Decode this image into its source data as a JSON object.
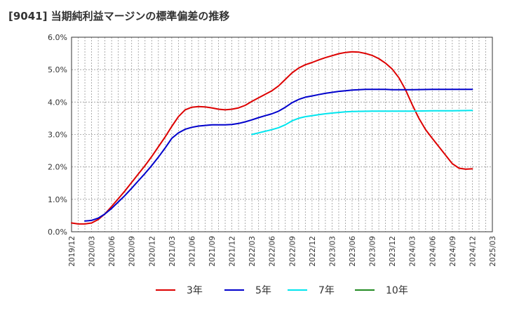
{
  "title": "[9041]  当期純利益マージンの標準偏差の推移",
  "chart_data": {
    "type": "line",
    "title": "[9041]  当期純利益マージンの標準偏差の推移",
    "xlabel": "",
    "ylabel": "",
    "ylim": [
      0,
      6
    ],
    "y_ticks": [
      "0.0%",
      "1.0%",
      "2.0%",
      "3.0%",
      "4.0%",
      "5.0%",
      "6.0%"
    ],
    "x_ticks": [
      "2019/12",
      "2020/03",
      "2020/06",
      "2020/09",
      "2020/12",
      "2021/03",
      "2021/06",
      "2021/09",
      "2021/12",
      "2022/03",
      "2022/06",
      "2022/09",
      "2022/12",
      "2023/03",
      "2023/06",
      "2023/09",
      "2023/12",
      "2024/03",
      "2024/06",
      "2024/09",
      "2024/12",
      "2025/03"
    ],
    "grid": true,
    "legend_position": "bottom",
    "series": [
      {
        "name": "3年",
        "color": "#dd0000",
        "points": [
          [
            "2019/12",
            0.27
          ],
          [
            "2020/01",
            0.24
          ],
          [
            "2020/02",
            0.24
          ],
          [
            "2020/03",
            0.27
          ],
          [
            "2020/04",
            0.38
          ],
          [
            "2020/05",
            0.55
          ],
          [
            "2020/06",
            0.78
          ],
          [
            "2020/07",
            1.02
          ],
          [
            "2020/08",
            1.26
          ],
          [
            "2020/09",
            1.52
          ],
          [
            "2020/10",
            1.78
          ],
          [
            "2020/11",
            2.04
          ],
          [
            "2020/12",
            2.32
          ],
          [
            "2021/01",
            2.62
          ],
          [
            "2021/02",
            2.92
          ],
          [
            "2021/03",
            3.25
          ],
          [
            "2021/04",
            3.55
          ],
          [
            "2021/05",
            3.76
          ],
          [
            "2021/06",
            3.84
          ],
          [
            "2021/07",
            3.86
          ],
          [
            "2021/08",
            3.85
          ],
          [
            "2021/09",
            3.82
          ],
          [
            "2021/10",
            3.78
          ],
          [
            "2021/11",
            3.76
          ],
          [
            "2021/12",
            3.78
          ],
          [
            "2022/01",
            3.82
          ],
          [
            "2022/02",
            3.9
          ],
          [
            "2022/03",
            4.02
          ],
          [
            "2022/04",
            4.13
          ],
          [
            "2022/05",
            4.24
          ],
          [
            "2022/06",
            4.35
          ],
          [
            "2022/07",
            4.5
          ],
          [
            "2022/08",
            4.7
          ],
          [
            "2022/09",
            4.9
          ],
          [
            "2022/10",
            5.05
          ],
          [
            "2022/11",
            5.15
          ],
          [
            "2022/12",
            5.22
          ],
          [
            "2023/01",
            5.3
          ],
          [
            "2023/02",
            5.37
          ],
          [
            "2023/03",
            5.43
          ],
          [
            "2023/04",
            5.49
          ],
          [
            "2023/05",
            5.53
          ],
          [
            "2023/06",
            5.55
          ],
          [
            "2023/07",
            5.54
          ],
          [
            "2023/08",
            5.5
          ],
          [
            "2023/09",
            5.44
          ],
          [
            "2023/10",
            5.34
          ],
          [
            "2023/11",
            5.2
          ],
          [
            "2023/12",
            5.02
          ],
          [
            "2024/01",
            4.75
          ],
          [
            "2024/02",
            4.38
          ],
          [
            "2024/03",
            3.92
          ],
          [
            "2024/04",
            3.5
          ],
          [
            "2024/05",
            3.15
          ],
          [
            "2024/06",
            2.88
          ],
          [
            "2024/07",
            2.62
          ],
          [
            "2024/08",
            2.36
          ],
          [
            "2024/09",
            2.1
          ],
          [
            "2024/10",
            1.96
          ],
          [
            "2024/11",
            1.93
          ],
          [
            "2024/12",
            1.94
          ]
        ]
      },
      {
        "name": "5年",
        "color": "#0000cc",
        "points": [
          [
            "2020/02",
            0.33
          ],
          [
            "2020/03",
            0.35
          ],
          [
            "2020/04",
            0.42
          ],
          [
            "2020/05",
            0.55
          ],
          [
            "2020/06",
            0.72
          ],
          [
            "2020/07",
            0.92
          ],
          [
            "2020/08",
            1.12
          ],
          [
            "2020/09",
            1.34
          ],
          [
            "2020/10",
            1.57
          ],
          [
            "2020/11",
            1.8
          ],
          [
            "2020/12",
            2.04
          ],
          [
            "2021/01",
            2.3
          ],
          [
            "2021/02",
            2.58
          ],
          [
            "2021/03",
            2.88
          ],
          [
            "2021/04",
            3.05
          ],
          [
            "2021/05",
            3.16
          ],
          [
            "2021/06",
            3.22
          ],
          [
            "2021/07",
            3.26
          ],
          [
            "2021/08",
            3.28
          ],
          [
            "2021/09",
            3.3
          ],
          [
            "2021/10",
            3.3
          ],
          [
            "2021/11",
            3.3
          ],
          [
            "2021/12",
            3.31
          ],
          [
            "2022/01",
            3.34
          ],
          [
            "2022/02",
            3.39
          ],
          [
            "2022/03",
            3.45
          ],
          [
            "2022/04",
            3.52
          ],
          [
            "2022/05",
            3.58
          ],
          [
            "2022/06",
            3.64
          ],
          [
            "2022/07",
            3.72
          ],
          [
            "2022/08",
            3.84
          ],
          [
            "2022/09",
            3.98
          ],
          [
            "2022/10",
            4.08
          ],
          [
            "2022/11",
            4.15
          ],
          [
            "2022/12",
            4.19
          ],
          [
            "2023/01",
            4.23
          ],
          [
            "2023/02",
            4.27
          ],
          [
            "2023/03",
            4.3
          ],
          [
            "2023/04",
            4.33
          ],
          [
            "2023/05",
            4.35
          ],
          [
            "2023/06",
            4.37
          ],
          [
            "2023/07",
            4.38
          ],
          [
            "2023/08",
            4.39
          ],
          [
            "2023/09",
            4.39
          ],
          [
            "2023/10",
            4.39
          ],
          [
            "2023/11",
            4.39
          ],
          [
            "2023/12",
            4.38
          ],
          [
            "2024/03",
            4.38
          ],
          [
            "2024/06",
            4.39
          ],
          [
            "2024/09",
            4.39
          ],
          [
            "2024/12",
            4.39
          ]
        ]
      },
      {
        "name": "7年",
        "color": "#00e5ee",
        "points": [
          [
            "2022/03",
            3.0
          ],
          [
            "2022/04",
            3.05
          ],
          [
            "2022/05",
            3.1
          ],
          [
            "2022/06",
            3.15
          ],
          [
            "2022/07",
            3.21
          ],
          [
            "2022/08",
            3.3
          ],
          [
            "2022/09",
            3.42
          ],
          [
            "2022/10",
            3.5
          ],
          [
            "2022/11",
            3.55
          ],
          [
            "2022/12",
            3.58
          ],
          [
            "2023/01",
            3.61
          ],
          [
            "2023/02",
            3.64
          ],
          [
            "2023/03",
            3.66
          ],
          [
            "2023/04",
            3.68
          ],
          [
            "2023/05",
            3.7
          ],
          [
            "2023/06",
            3.71
          ],
          [
            "2023/09",
            3.72
          ],
          [
            "2023/12",
            3.72
          ],
          [
            "2024/03",
            3.72
          ],
          [
            "2024/06",
            3.73
          ],
          [
            "2024/09",
            3.73
          ],
          [
            "2024/12",
            3.74
          ]
        ]
      },
      {
        "name": "10年",
        "color": "#228b22",
        "points": []
      }
    ]
  }
}
